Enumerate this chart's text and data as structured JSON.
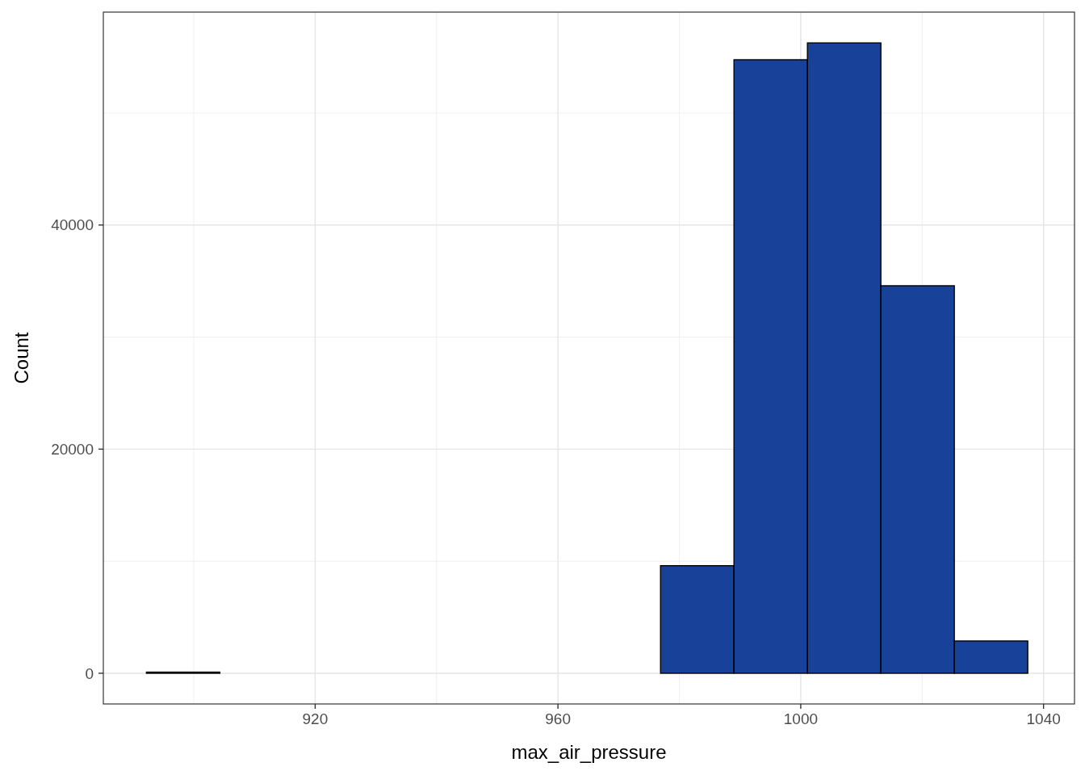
{
  "chart_data": {
    "type": "histogram",
    "xlabel": "max_air_pressure",
    "ylabel": "Count",
    "bins": [
      892.2,
      904.3,
      916.4,
      928.5,
      940.6,
      952.7,
      964.8,
      976.9,
      989.0,
      1001.1,
      1013.2,
      1025.3,
      1037.4
    ],
    "values": [
      100,
      0,
      0,
      0,
      0,
      0,
      0,
      9600,
      54750,
      56250,
      34580,
      2880
    ],
    "color": "#18429a",
    "xlim": [
      885.1,
      1045.1
    ],
    "xticks": [
      920,
      960,
      1000,
      1040
    ],
    "ylim": [
      -2740,
      59000
    ],
    "yticks": [
      0,
      20000,
      40000
    ],
    "grid": true
  }
}
